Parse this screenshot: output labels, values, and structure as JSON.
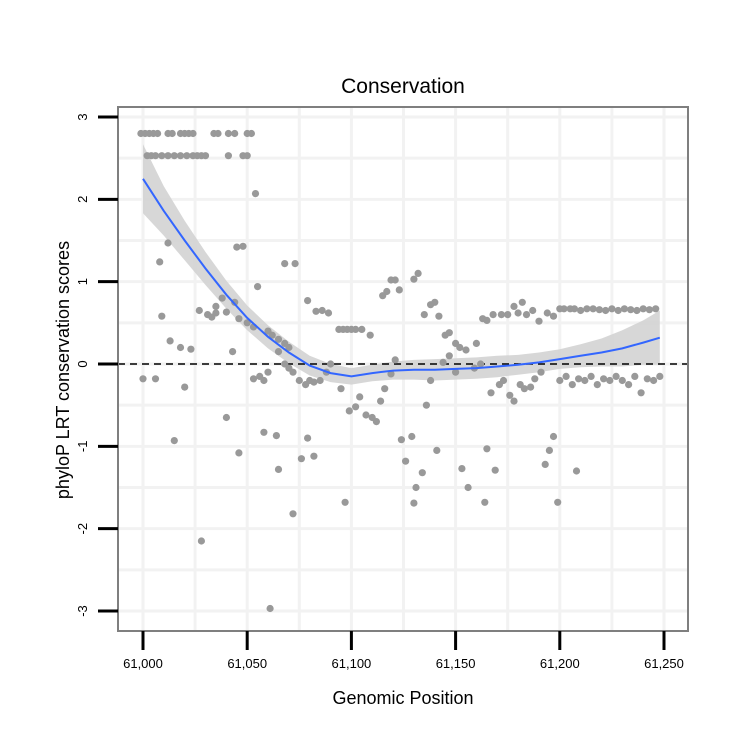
{
  "chart_data": {
    "type": "scatter",
    "title": "Conservation",
    "xlabel": "Genomic Position",
    "ylabel": "phyloP LRT conservation scores",
    "xlim": [
      61000,
      61250
    ],
    "ylim": [
      -3,
      3
    ],
    "x_ticks": [
      61000,
      61050,
      61100,
      61150,
      61200,
      61250
    ],
    "x_tick_labels": [
      "61,000",
      "61,050",
      "61,100",
      "61,150",
      "61,200",
      "61,250"
    ],
    "y_ticks": [
      -3,
      -2,
      -1,
      0,
      1,
      2,
      3
    ],
    "y_tick_labels": [
      "-3",
      "-2",
      "-1",
      "0",
      "1",
      "2",
      "3"
    ],
    "reference_line": {
      "y": 0,
      "style": "dashed"
    },
    "colors": {
      "points": "#999999",
      "smooth_line": "#3366FF",
      "confidence_band": "#D3D3D3",
      "panel_border": "#7F7F7F",
      "grid": "#F2F2F2"
    },
    "series": [
      {
        "name": "phyloP scores",
        "kind": "points",
        "points": [
          [
            60999,
            2.8
          ],
          [
            61001,
            2.8
          ],
          [
            61003,
            2.8
          ],
          [
            61005,
            2.8
          ],
          [
            61007,
            2.8
          ],
          [
            61012,
            2.8
          ],
          [
            61014,
            2.8
          ],
          [
            61018,
            2.8
          ],
          [
            61020,
            2.8
          ],
          [
            61022,
            2.8
          ],
          [
            61024,
            2.8
          ],
          [
            61034,
            2.8
          ],
          [
            61036,
            2.8
          ],
          [
            61041,
            2.8
          ],
          [
            61044,
            2.8
          ],
          [
            61050,
            2.8
          ],
          [
            61052,
            2.8
          ],
          [
            61002,
            2.53
          ],
          [
            61004,
            2.53
          ],
          [
            61006,
            2.53
          ],
          [
            61009,
            2.53
          ],
          [
            61012,
            2.53
          ],
          [
            61015,
            2.53
          ],
          [
            61018,
            2.53
          ],
          [
            61021,
            2.53
          ],
          [
            61024,
            2.53
          ],
          [
            61026,
            2.53
          ],
          [
            61028,
            2.53
          ],
          [
            61030,
            2.53
          ],
          [
            61041,
            2.53
          ],
          [
            61048,
            2.53
          ],
          [
            61050,
            2.53
          ],
          [
            61054,
            2.07
          ],
          [
            61008,
            1.24
          ],
          [
            61012,
            1.47
          ],
          [
            61045,
            1.42
          ],
          [
            61048,
            1.43
          ],
          [
            61068,
            1.22
          ],
          [
            61073,
            1.22
          ],
          [
            61055,
            0.94
          ],
          [
            61009,
            0.58
          ],
          [
            61027,
            0.65
          ],
          [
            61031,
            0.6
          ],
          [
            61033,
            0.57
          ],
          [
            61035,
            0.62
          ],
          [
            61038,
            0.8
          ],
          [
            61040,
            0.63
          ],
          [
            61044,
            0.75
          ],
          [
            61046,
            0.55
          ],
          [
            61050,
            0.5
          ],
          [
            61053,
            0.45
          ],
          [
            61060,
            0.4
          ],
          [
            61062,
            0.35
          ],
          [
            61065,
            0.3
          ],
          [
            61068,
            0.25
          ],
          [
            61070,
            0.2
          ],
          [
            61013,
            0.28
          ],
          [
            61018,
            0.2
          ],
          [
            61023,
            0.18
          ],
          [
            61035,
            0.7
          ],
          [
            61043,
            0.15
          ],
          [
            61000,
            -0.18
          ],
          [
            61006,
            -0.18
          ],
          [
            61020,
            -0.28
          ],
          [
            61053,
            -0.18
          ],
          [
            61056,
            -0.15
          ],
          [
            61058,
            -0.2
          ],
          [
            61060,
            -0.1
          ],
          [
            61065,
            0.15
          ],
          [
            61068,
            0.0
          ],
          [
            61070,
            -0.05
          ],
          [
            61072,
            -0.1
          ],
          [
            61075,
            -0.2
          ],
          [
            61078,
            -0.25
          ],
          [
            61080,
            -0.2
          ],
          [
            61082,
            -0.22
          ],
          [
            61085,
            -0.2
          ],
          [
            61088,
            -0.1
          ],
          [
            61090,
            0.0
          ],
          [
            61079,
            0.77
          ],
          [
            61083,
            0.64
          ],
          [
            61086,
            0.65
          ],
          [
            61089,
            0.62
          ],
          [
            61094,
            0.42
          ],
          [
            61096,
            0.42
          ],
          [
            61098,
            0.42
          ],
          [
            61100,
            0.42
          ],
          [
            61102,
            0.42
          ],
          [
            61105,
            0.42
          ],
          [
            61109,
            0.35
          ],
          [
            61115,
            0.83
          ],
          [
            61117,
            0.88
          ],
          [
            61119,
            1.02
          ],
          [
            61121,
            1.02
          ],
          [
            61123,
            0.9
          ],
          [
            61130,
            1.03
          ],
          [
            61132,
            1.1
          ],
          [
            61135,
            0.6
          ],
          [
            61138,
            0.72
          ],
          [
            61140,
            0.75
          ],
          [
            61142,
            0.58
          ],
          [
            61145,
            0.35
          ],
          [
            61147,
            0.38
          ],
          [
            61150,
            0.25
          ],
          [
            61152,
            0.2
          ],
          [
            61155,
            0.17
          ],
          [
            61160,
            0.25
          ],
          [
            61163,
            0.55
          ],
          [
            61165,
            0.53
          ],
          [
            61168,
            0.6
          ],
          [
            61172,
            0.6
          ],
          [
            61175,
            0.6
          ],
          [
            61178,
            0.7
          ],
          [
            61180,
            0.62
          ],
          [
            61182,
            0.75
          ],
          [
            61184,
            0.6
          ],
          [
            61187,
            0.65
          ],
          [
            61190,
            0.52
          ],
          [
            61194,
            0.62
          ],
          [
            61197,
            0.58
          ],
          [
            61200,
            0.67
          ],
          [
            61202,
            0.67
          ],
          [
            61205,
            0.67
          ],
          [
            61207,
            0.67
          ],
          [
            61210,
            0.65
          ],
          [
            61213,
            0.67
          ],
          [
            61216,
            0.67
          ],
          [
            61219,
            0.66
          ],
          [
            61222,
            0.65
          ],
          [
            61225,
            0.67
          ],
          [
            61228,
            0.65
          ],
          [
            61231,
            0.67
          ],
          [
            61234,
            0.66
          ],
          [
            61237,
            0.65
          ],
          [
            61240,
            0.67
          ],
          [
            61243,
            0.66
          ],
          [
            61246,
            0.67
          ],
          [
            61095,
            -0.3
          ],
          [
            61099,
            -0.57
          ],
          [
            61102,
            -0.52
          ],
          [
            61104,
            -0.4
          ],
          [
            61107,
            -0.62
          ],
          [
            61110,
            -0.65
          ],
          [
            61112,
            -0.7
          ],
          [
            61114,
            -0.45
          ],
          [
            61116,
            -0.3
          ],
          [
            61119,
            -0.12
          ],
          [
            61121,
            0.05
          ],
          [
            61124,
            -0.92
          ],
          [
            61126,
            -1.18
          ],
          [
            61129,
            -0.88
          ],
          [
            61131,
            -1.5
          ],
          [
            61134,
            -1.32
          ],
          [
            61136,
            -0.5
          ],
          [
            61138,
            -0.2
          ],
          [
            61141,
            -1.05
          ],
          [
            61144,
            0.02
          ],
          [
            61147,
            0.1
          ],
          [
            61150,
            -0.1
          ],
          [
            61153,
            -1.27
          ],
          [
            61156,
            -1.5
          ],
          [
            61159,
            -0.05
          ],
          [
            61162,
            0.0
          ],
          [
            61165,
            -1.03
          ],
          [
            61167,
            -0.35
          ],
          [
            61169,
            -1.29
          ],
          [
            61171,
            -0.25
          ],
          [
            61173,
            -0.2
          ],
          [
            61176,
            -0.38
          ],
          [
            61178,
            -0.45
          ],
          [
            61181,
            -0.25
          ],
          [
            61183,
            -0.3
          ],
          [
            61186,
            -0.28
          ],
          [
            61188,
            -0.18
          ],
          [
            61191,
            -0.1
          ],
          [
            61193,
            -1.22
          ],
          [
            61195,
            -1.05
          ],
          [
            61197,
            -0.88
          ],
          [
            61200,
            -0.2
          ],
          [
            61203,
            -0.15
          ],
          [
            61206,
            -0.25
          ],
          [
            61209,
            -0.18
          ],
          [
            61212,
            -0.2
          ],
          [
            61215,
            -0.15
          ],
          [
            61218,
            -0.25
          ],
          [
            61221,
            -0.18
          ],
          [
            61224,
            -0.2
          ],
          [
            61227,
            -0.15
          ],
          [
            61230,
            -0.2
          ],
          [
            61233,
            -0.25
          ],
          [
            61236,
            -0.15
          ],
          [
            61239,
            -0.35
          ],
          [
            61242,
            -0.18
          ],
          [
            61245,
            -0.2
          ],
          [
            61248,
            -0.15
          ],
          [
            61015,
            -0.93
          ],
          [
            61040,
            -0.65
          ],
          [
            61046,
            -1.08
          ],
          [
            61058,
            -0.83
          ],
          [
            61064,
            -0.87
          ],
          [
            61065,
            -1.28
          ],
          [
            61072,
            -1.82
          ],
          [
            61076,
            -1.15
          ],
          [
            61079,
            -0.9
          ],
          [
            61082,
            -1.12
          ],
          [
            61097,
            -1.68
          ],
          [
            61130,
            -1.69
          ],
          [
            61164,
            -1.68
          ],
          [
            61199,
            -1.68
          ],
          [
            61208,
            -1.3
          ],
          [
            61028,
            -2.15
          ],
          [
            61061,
            -2.97
          ]
        ]
      },
      {
        "name": "loess smooth",
        "kind": "line",
        "x": [
          61000,
          61010,
          61020,
          61030,
          61040,
          61050,
          61060,
          61070,
          61080,
          61090,
          61100,
          61110,
          61120,
          61130,
          61140,
          61150,
          61160,
          61170,
          61180,
          61190,
          61200,
          61210,
          61220,
          61230,
          61240,
          61248
        ],
        "y": [
          2.25,
          1.86,
          1.5,
          1.16,
          0.84,
          0.56,
          0.33,
          0.14,
          -0.02,
          -0.11,
          -0.15,
          -0.11,
          -0.08,
          -0.07,
          -0.07,
          -0.06,
          -0.05,
          -0.03,
          -0.01,
          0.02,
          0.06,
          0.1,
          0.14,
          0.19,
          0.26,
          0.32
        ],
        "ci_upper": [
          2.67,
          2.16,
          1.74,
          1.36,
          1.01,
          0.71,
          0.47,
          0.27,
          0.1,
          0.0,
          -0.05,
          -0.01,
          0.03,
          0.05,
          0.06,
          0.07,
          0.08,
          0.1,
          0.11,
          0.14,
          0.18,
          0.24,
          0.31,
          0.41,
          0.53,
          0.65
        ],
        "ci_lower": [
          1.83,
          1.56,
          1.26,
          0.96,
          0.67,
          0.41,
          0.19,
          0.01,
          -0.14,
          -0.22,
          -0.25,
          -0.21,
          -0.19,
          -0.19,
          -0.2,
          -0.19,
          -0.18,
          -0.16,
          -0.13,
          -0.1,
          -0.06,
          -0.04,
          -0.03,
          -0.03,
          -0.01,
          -0.01
        ]
      }
    ]
  }
}
